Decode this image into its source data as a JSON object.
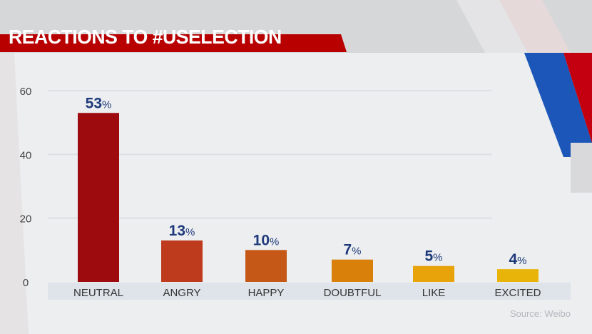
{
  "title": "REACTIONS TO #USELECTION",
  "source": "Source: Weibo",
  "colors": {
    "banner": "#b80000",
    "label": "#1f3a7a"
  },
  "chart_data": {
    "type": "bar",
    "title": "REACTIONS TO #USELECTION",
    "xlabel": "",
    "ylabel": "",
    "ylim": [
      0,
      60
    ],
    "yticks": [
      "0",
      "20",
      "40",
      "60"
    ],
    "grid": true,
    "categories": [
      "NEUTRAL",
      "ANGRY",
      "HAPPY",
      "DOUBTFUL",
      "LIKE",
      "EXCITED"
    ],
    "values": [
      53,
      13,
      10,
      7,
      5,
      4
    ],
    "data_labels": [
      "53%",
      "13%",
      "10%",
      "7%",
      "5%",
      "4%"
    ],
    "bar_colors": [
      "#9e0b0f",
      "#bf3b1e",
      "#c55816",
      "#d8800a",
      "#e8a20a",
      "#e8b40a"
    ]
  }
}
